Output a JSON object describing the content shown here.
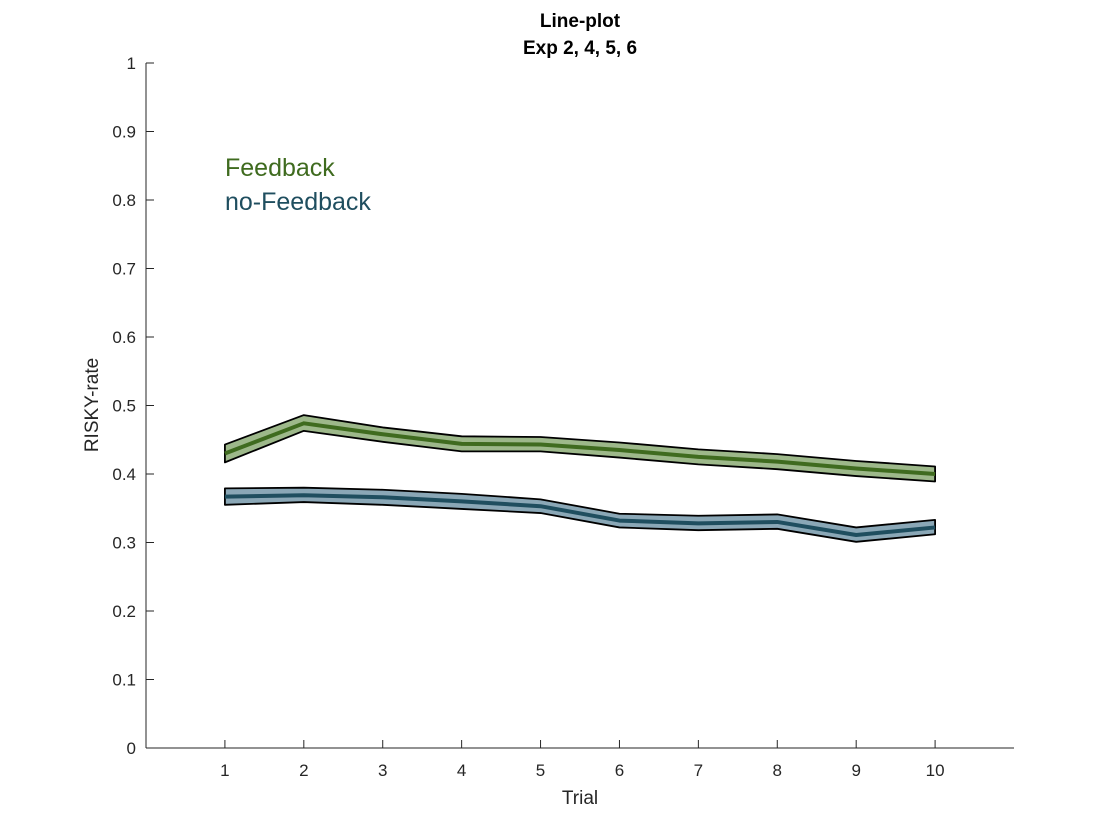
{
  "chart_data": {
    "type": "line",
    "title": [
      "Line-plot",
      "Exp 2, 4, 5, 6"
    ],
    "xlabel": "Trial",
    "ylabel": "RISKY-rate",
    "xlim": [
      0,
      11
    ],
    "ylim": [
      0,
      1
    ],
    "x": [
      1,
      2,
      3,
      4,
      5,
      6,
      7,
      8,
      9,
      10
    ],
    "x_ticks": [
      1,
      2,
      3,
      4,
      5,
      6,
      7,
      8,
      9,
      10
    ],
    "y_ticks": [
      0,
      0.1,
      0.2,
      0.3,
      0.4,
      0.5,
      0.6,
      0.7,
      0.8,
      0.9,
      1
    ],
    "y_tick_labels": [
      "0",
      "0.1",
      "0.2",
      "0.3",
      "0.4",
      "0.5",
      "0.6",
      "0.7",
      "0.8",
      "0.9",
      "1"
    ],
    "grid": false,
    "legend_position": "top-left",
    "series": [
      {
        "name": "Feedback",
        "color": "#3f6b1f",
        "band_color": "#9db88a",
        "values": [
          0.43,
          0.474,
          0.458,
          0.444,
          0.443,
          0.435,
          0.425,
          0.418,
          0.408,
          0.4
        ],
        "lower": [
          0.417,
          0.463,
          0.447,
          0.433,
          0.433,
          0.424,
          0.414,
          0.407,
          0.397,
          0.389
        ],
        "upper": [
          0.443,
          0.486,
          0.468,
          0.455,
          0.454,
          0.446,
          0.436,
          0.429,
          0.419,
          0.411
        ]
      },
      {
        "name": "no-Feedback",
        "color": "#1f4e5f",
        "band_color": "#8aa7b6",
        "values": [
          0.367,
          0.369,
          0.366,
          0.36,
          0.353,
          0.332,
          0.328,
          0.33,
          0.311,
          0.322
        ],
        "lower": [
          0.355,
          0.359,
          0.355,
          0.349,
          0.343,
          0.322,
          0.318,
          0.32,
          0.301,
          0.312
        ],
        "upper": [
          0.379,
          0.38,
          0.377,
          0.371,
          0.363,
          0.342,
          0.339,
          0.341,
          0.322,
          0.333
        ]
      }
    ]
  }
}
